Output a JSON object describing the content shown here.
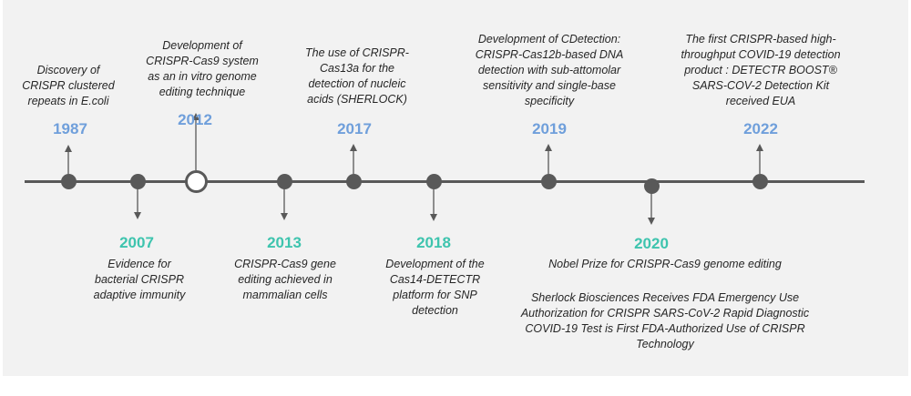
{
  "events": [
    {
      "year": "1987",
      "text": "Discovery of\nCRISPR clustered\nrepeats in E.coli"
    },
    {
      "year": "2007",
      "text": "Evidence for\nbacterial CRISPR\nadaptive immunity"
    },
    {
      "year": "2012",
      "text": "Development of\nCRISPR-Cas9 system\nas an in vitro genome\nediting technique"
    },
    {
      "year": "2013",
      "text": "CRISPR-Cas9 gene\nediting achieved in\nmammalian cells"
    },
    {
      "year": "2017",
      "text": "The use of CRISPR-\nCas13a for the\ndetection of nucleic\nacids (SHERLOCK)"
    },
    {
      "year": "2018",
      "text": "Development of the\nCas14-DETECTR\nplatform for SNP\ndetection"
    },
    {
      "year": "2019",
      "text": "Development of CDetection:\nCRISPR-Cas12b-based DNA\ndetection with sub-attomolar\nsensitivity and single-base\nspecificity"
    },
    {
      "year": "2020",
      "text": "Nobel Prize for CRISPR-Cas9 genome editing",
      "text2": "Sherlock Biosciences Receives FDA Emergency Use\nAuthorization for CRISPR SARS-CoV-2 Rapid Diagnostic\nCOVID-19 Test is First FDA-Authorized Use of CRISPR\nTechnology"
    },
    {
      "year": "2022",
      "text": "The first CRISPR-based high-\nthroughput COVID-19 detection\nproduct : DETECTR BOOST®\nSARS-COV-2 Detection Kit\nreceived EUA"
    }
  ],
  "colors": {
    "above_year": "#6f9fdb",
    "below_year": "#3ec4ae",
    "axis": "#595959",
    "background": "#f2f2f2"
  }
}
